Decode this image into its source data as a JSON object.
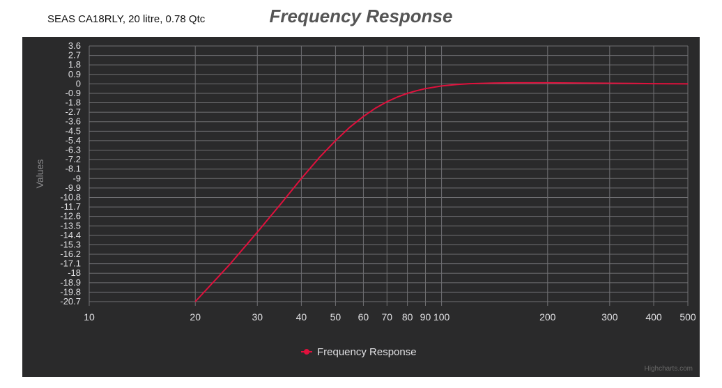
{
  "header": {
    "subtitle": "SEAS CA18RLY, 20 litre, 0.78 Qtc",
    "title": "Frequency Response"
  },
  "credits": "Highcharts.com",
  "colors": {
    "background": "#2a2a2b",
    "plot_line": "#e0103c",
    "grid": "#707073",
    "text": "#e0e0e3"
  },
  "chart_data": {
    "type": "line",
    "title": "Frequency Response",
    "subtitle": "SEAS CA18RLY, 20 litre, 0.78 Qtc",
    "xlabel": "",
    "ylabel": "Values",
    "x_scale": "log",
    "xlim": [
      10,
      500
    ],
    "ylim": [
      -20.7,
      3.6
    ],
    "x_ticks": [
      10,
      20,
      30,
      40,
      50,
      60,
      70,
      80,
      90,
      100,
      200,
      300,
      400,
      500
    ],
    "x_tick_labels": [
      "10",
      "20",
      "30",
      "40",
      "50",
      "60",
      "70",
      "80",
      "90",
      "100",
      "200",
      "300",
      "400",
      "500"
    ],
    "y_ticks": [
      3.6,
      2.7,
      1.8,
      0.9,
      0,
      -0.9,
      -1.8,
      -2.7,
      -3.6,
      -4.5,
      -5.4,
      -6.3,
      -7.2,
      -8.1,
      -9,
      -9.9,
      -10.8,
      -11.7,
      -12.6,
      -13.5,
      -14.4,
      -15.3,
      -16.2,
      -17.1,
      -18,
      -18.9,
      -19.8,
      -20.7
    ],
    "y_tick_labels": [
      "3.6",
      "2.7",
      "1.8",
      "0.9",
      "0",
      "-0.9",
      "-1.8",
      "-2.7",
      "-3.6",
      "-4.5",
      "-5.4",
      "-6.3",
      "-7.2",
      "-8.1",
      "-9",
      "-9.9",
      "-10.8",
      "-11.7",
      "-12.6",
      "-13.5",
      "-14.4",
      "-15.3",
      "-16.2",
      "-17.1",
      "-18",
      "-18.9",
      "-19.8",
      "-20.7"
    ],
    "grid": true,
    "legend_position": "bottom-center",
    "series": [
      {
        "name": "Frequency Response",
        "color": "#e0103c",
        "x": [
          20,
          25,
          30,
          35,
          40,
          45,
          50,
          55,
          60,
          65,
          70,
          75,
          80,
          85,
          90,
          100,
          110,
          120,
          140,
          160,
          200,
          250,
          300,
          350,
          400,
          450,
          500
        ],
        "y": [
          -20.7,
          -17.2,
          -14.1,
          -11.4,
          -9.0,
          -7.0,
          -5.4,
          -4.1,
          -3.1,
          -2.3,
          -1.7,
          -1.25,
          -0.9,
          -0.65,
          -0.45,
          -0.2,
          -0.07,
          0.02,
          0.08,
          0.1,
          0.1,
          0.08,
          0.06,
          0.04,
          0.02,
          0.01,
          0.0
        ]
      }
    ]
  }
}
